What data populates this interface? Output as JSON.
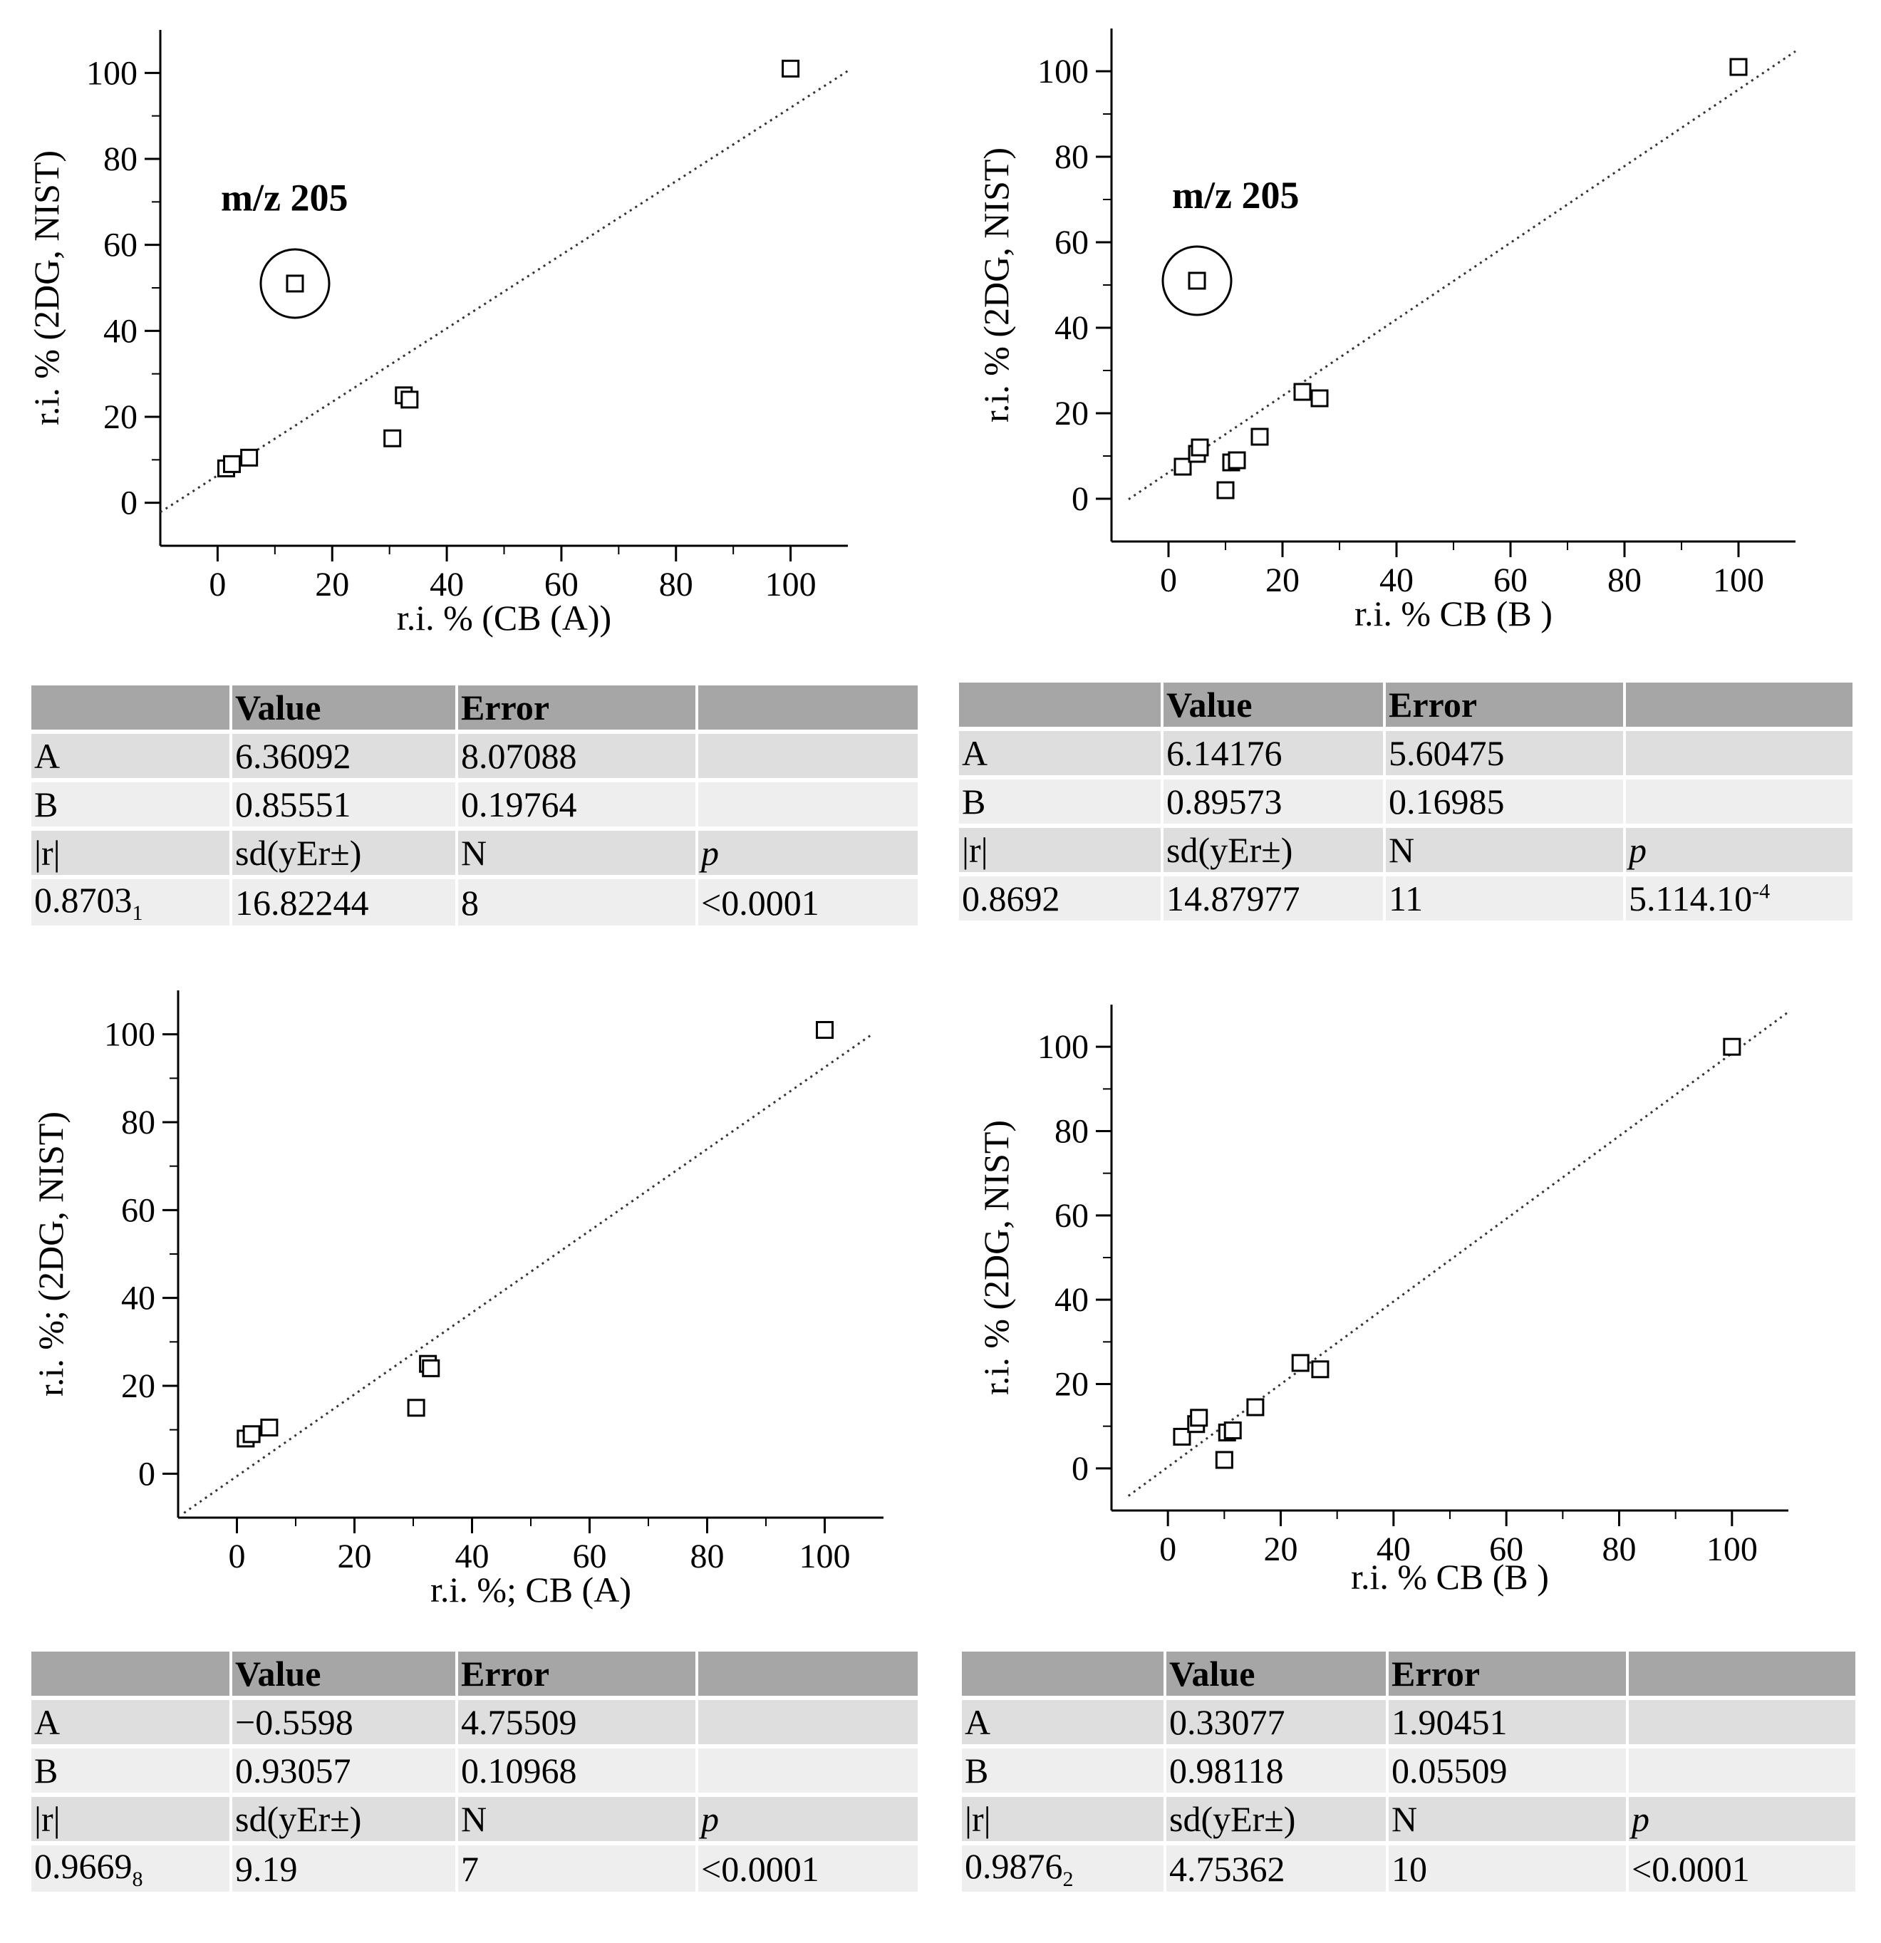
{
  "chart_data": [
    {
      "type": "scatter",
      "xlabel": "r.i. % (CB (A))",
      "ylabel": "r.i. % (2DG, NIST)",
      "annotation": "m/z  205",
      "xlim": [
        -10,
        110
      ],
      "ylim": [
        -10,
        110
      ],
      "xticks": [
        0,
        20,
        40,
        60,
        80,
        100
      ],
      "yticks": [
        0,
        20,
        40,
        60,
        80,
        100
      ],
      "points": [
        [
          1.5,
          8
        ],
        [
          2.5,
          9
        ],
        [
          5.5,
          10.5
        ],
        [
          13.5,
          51
        ],
        [
          30.5,
          15
        ],
        [
          32.5,
          25
        ],
        [
          33.5,
          24
        ],
        [
          100,
          101
        ]
      ],
      "circled_point": [
        13.5,
        51
      ],
      "fit": {
        "intercept": 6.36092,
        "slope": 0.85551
      },
      "fit_range": [
        -10,
        110
      ],
      "table": {
        "headers": [
          "",
          "Value",
          "Error",
          ""
        ],
        "rows": [
          [
            "A",
            "6.36092",
            "8.07088",
            ""
          ],
          [
            "B",
            "0.85551",
            "0.19764",
            ""
          ],
          [
            "|r|",
            "sd(yEr±)",
            "N",
            "p"
          ],
          [
            "0.8703",
            "16.82244",
            "8",
            "<0.0001"
          ]
        ],
        "r_sub": "1"
      }
    },
    {
      "type": "scatter",
      "xlabel": "r.i. % CB (B )",
      "ylabel": "r.i. % (2DG, NIST)",
      "annotation": "m/z  205",
      "xlim": [
        -10,
        110
      ],
      "ylim": [
        -10,
        110
      ],
      "xticks": [
        0,
        20,
        40,
        60,
        80,
        100
      ],
      "yticks": [
        0,
        20,
        40,
        60,
        80,
        100
      ],
      "points": [
        [
          2.5,
          7.5
        ],
        [
          5,
          10.5
        ],
        [
          5.5,
          12
        ],
        [
          5,
          51
        ],
        [
          10,
          2
        ],
        [
          11,
          8.5
        ],
        [
          12,
          9
        ],
        [
          16,
          14.5
        ],
        [
          23.5,
          25
        ],
        [
          26.5,
          23.5
        ],
        [
          100,
          101
        ]
      ],
      "circled_point": [
        5,
        51
      ],
      "fit": {
        "intercept": 6.14176,
        "slope": 0.89573
      },
      "fit_range": [
        -7,
        110
      ],
      "table": {
        "headers": [
          "",
          "Value",
          "Error",
          ""
        ],
        "rows": [
          [
            "A",
            "6.14176",
            "5.60475",
            ""
          ],
          [
            "B",
            "0.89573",
            "0.16985",
            ""
          ],
          [
            "|r|",
            "sd(yEr±)",
            "N",
            "p"
          ],
          [
            "0.8692",
            "14.87977",
            "11",
            "5.114.10"
          ]
        ],
        "p_sup": "-4"
      }
    },
    {
      "type": "scatter",
      "xlabel": "r.i. %; CB (A)",
      "ylabel": "r.i. %; (2DG, NIST)",
      "xlim": [
        -10,
        110
      ],
      "ylim": [
        -10,
        110
      ],
      "xticks": [
        0,
        20,
        40,
        60,
        80,
        100
      ],
      "yticks": [
        0,
        20,
        40,
        60,
        80,
        100
      ],
      "points": [
        [
          1.5,
          8
        ],
        [
          2.5,
          9
        ],
        [
          5.5,
          10.5
        ],
        [
          30.5,
          15
        ],
        [
          32.5,
          25
        ],
        [
          33,
          24
        ],
        [
          100,
          101
        ]
      ],
      "fit": {
        "intercept": -0.5598,
        "slope": 0.93057
      },
      "fit_range": [
        -9,
        108
      ],
      "table": {
        "headers": [
          "",
          "Value",
          "Error",
          ""
        ],
        "rows": [
          [
            "A",
            "−0.5598",
            "4.75509",
            ""
          ],
          [
            "B",
            "0.93057",
            "0.10968",
            ""
          ],
          [
            "|r|",
            "sd(yEr±)",
            "N",
            "p"
          ],
          [
            "0.9669",
            "9.19",
            "7",
            "<0.0001"
          ]
        ],
        "r_sub": "8"
      }
    },
    {
      "type": "scatter",
      "xlabel": "r.i. % CB (B )",
      "ylabel": "r.i. % (2DG, NIST)",
      "xlim": [
        -10,
        110
      ],
      "ylim": [
        -10,
        110
      ],
      "xticks": [
        0,
        20,
        40,
        60,
        80,
        100
      ],
      "yticks": [
        0,
        20,
        40,
        60,
        80,
        100
      ],
      "points": [
        [
          2.5,
          7.5
        ],
        [
          5,
          10.5
        ],
        [
          5.5,
          12
        ],
        [
          10,
          2
        ],
        [
          10.5,
          8.5
        ],
        [
          11.5,
          9
        ],
        [
          15.5,
          14.5
        ],
        [
          23.5,
          25
        ],
        [
          27,
          23.5
        ],
        [
          100,
          100
        ]
      ],
      "fit": {
        "intercept": 0.33077,
        "slope": 0.98118
      },
      "fit_range": [
        -7,
        110
      ],
      "table": {
        "headers": [
          "",
          "Value",
          "Error",
          ""
        ],
        "rows": [
          [
            "A",
            "0.33077",
            "1.90451",
            ""
          ],
          [
            "B",
            "0.98118",
            "0.05509",
            ""
          ],
          [
            "|r|",
            "sd(yEr±)",
            "N",
            "p"
          ],
          [
            "0.9876",
            "4.75362",
            "10",
            "<0.0001"
          ]
        ],
        "r_sub": "2"
      }
    }
  ]
}
